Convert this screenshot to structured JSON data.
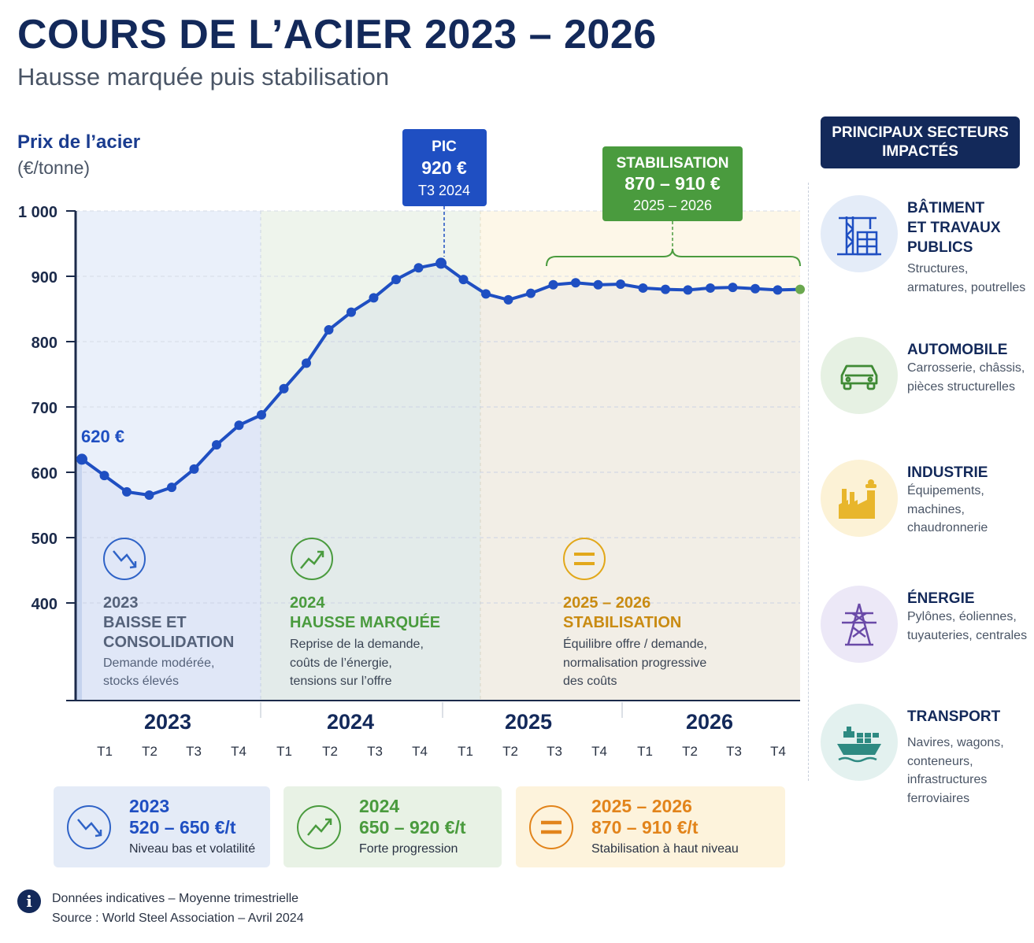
{
  "title": "COURS DE L’ACIER 2023 – 2026",
  "subtitle": "Hausse marquée puis stabilisation",
  "colors": {
    "navy": "#13295a",
    "line_blue": "#1f4fc2",
    "green": "#4a9b3e",
    "orange": "#e2841b",
    "zone_2023": "#eaf0fa",
    "zone_2024": "#eef4ec",
    "zone_2025": "#fdf7e8"
  },
  "chart_data": {
    "type": "line",
    "ylabel_line1": "Prix de l’acier",
    "ylabel_line2": "(€/tonne)",
    "ylim": [
      250,
      1000
    ],
    "yticks": [
      400,
      500,
      600,
      700,
      800,
      900,
      1000
    ],
    "ytick_labels": [
      "400",
      "500",
      "600",
      "700",
      "800",
      "900",
      "1 000"
    ],
    "grid": true,
    "years": [
      {
        "label": "2023",
        "quarters": [
          "T1",
          "T2",
          "T3",
          "T4"
        ]
      },
      {
        "label": "2024",
        "quarters": [
          "T1",
          "T2",
          "T3",
          "T4"
        ]
      },
      {
        "label": "2025",
        "quarters": [
          "T1",
          "T2",
          "T3",
          "T4"
        ]
      },
      {
        "label": "2026",
        "quarters": [
          "T1",
          "T2",
          "T3",
          "T4"
        ]
      }
    ],
    "series": [
      {
        "values": [
          620,
          595,
          570,
          565,
          577,
          605,
          642,
          672,
          688,
          728,
          767,
          818,
          845,
          867,
          895,
          913,
          920,
          895,
          873,
          864,
          874,
          887,
          890,
          887,
          888,
          882,
          880,
          879,
          882,
          883,
          881,
          879,
          880
        ]
      }
    ],
    "start_label": "620 €",
    "peak": {
      "line1": "PIC",
      "line2": "920 €",
      "line3": "T3 2024"
    },
    "stabilisation": {
      "line1": "STABILISATION",
      "line2": "870 – 910 €",
      "line3": "2025 – 2026"
    },
    "phases": [
      {
        "year": "2023",
        "title1": "BAISSE ET",
        "title2": "CONSOLIDATION",
        "desc1": "Demande modérée,",
        "desc2": "stocks élevés",
        "desc3": ""
      },
      {
        "year": "2024",
        "title1": "HAUSSE MARQUÉE",
        "title2": "",
        "desc1": "Reprise de la demande,",
        "desc2": "coûts de l’énergie,",
        "desc3": "tensions sur l’offre"
      },
      {
        "year": "2025 – 2026",
        "title1": "STABILISATION",
        "title2": "",
        "desc1": "Équilibre offre / demande,",
        "desc2": "normalisation progressive",
        "desc3": "des coûts"
      }
    ]
  },
  "sectors": {
    "header": "PRINCIPAUX SECTEURS\nIMPACTÉS",
    "items": [
      {
        "title": "BÂTIMENT\nET TRAVAUX\nPUBLICS",
        "desc": "Structures,\narmatures, poutrelles",
        "icon": "crane-building-icon"
      },
      {
        "title": "AUTOMOBILE",
        "desc": "Carrosserie, châssis,\npièces structurelles",
        "icon": "car-icon"
      },
      {
        "title": "INDUSTRIE",
        "desc": "Équipements,\nmachines,\nchaudronnerie",
        "icon": "factory-icon"
      },
      {
        "title": "ÉNERGIE",
        "desc": "Pylônes, éoliennes,\ntuyauteries, centrales",
        "icon": "pylon-icon"
      },
      {
        "title": "TRANSPORT",
        "desc": "Navires, wagons,\nconteneurs,\ninfrastructures\nferroviaires",
        "icon": "cargo-ship-icon"
      }
    ]
  },
  "kpis": [
    {
      "year": "2023",
      "range": "520 – 650 €/t",
      "desc": "Niveau bas et volatilité",
      "icon": "trend-down-icon"
    },
    {
      "year": "2024",
      "range": "650 – 920 €/t",
      "desc": "Forte progression",
      "icon": "trend-up-icon"
    },
    {
      "year": "2025 – 2026",
      "range": "870 – 910 €/t",
      "desc": "Stabilisation à haut niveau",
      "icon": "equals-icon"
    }
  ],
  "footnote": {
    "info_glyph": "i",
    "line1": "Données indicatives – Moyenne trimestrielle",
    "line2": "Source : World Steel Association – Avril 2024"
  }
}
